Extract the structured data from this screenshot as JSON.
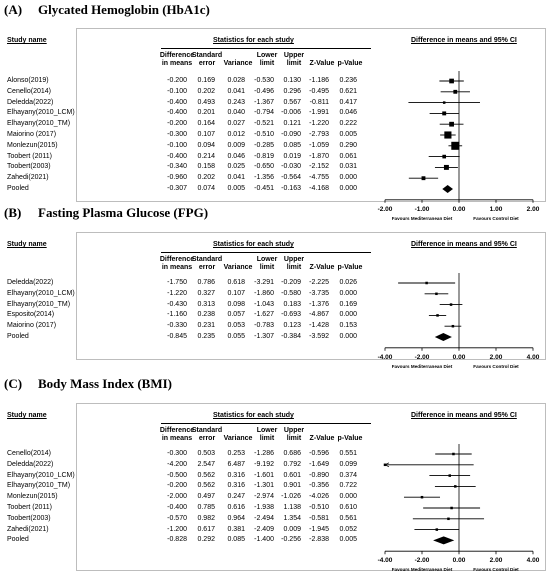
{
  "labels": {
    "study": "Study name",
    "stats": "Statistics for each study",
    "diff": "Difference in means and 95% CI",
    "col_dim": [
      "Difference",
      "in means"
    ],
    "col_se": [
      "Standard",
      "error"
    ],
    "col_var": "Variance",
    "col_ll": [
      "Lower",
      "limit"
    ],
    "col_ul": [
      "Upper",
      "limit"
    ],
    "col_z": "Z-Value",
    "col_p": "p-Value"
  },
  "panels": [
    {
      "letter": "(A)",
      "title": "Glycated Hemoglobin (HbA1c)",
      "rows": [
        [
          "Alonso(2019)",
          "-0.200",
          "0.169",
          "0.028",
          "-0.530",
          "0.130",
          "-1.186",
          "0.236"
        ],
        [
          "Cenello(2014)",
          "-0.100",
          "0.202",
          "0.041",
          "-0.496",
          "0.296",
          "-0.495",
          "0.621"
        ],
        [
          "Deledda(2022)",
          "-0.400",
          "0.493",
          "0.243",
          "-1.367",
          "0.567",
          "-0.811",
          "0.417"
        ],
        [
          "Elhayany(2010_LCM)",
          "-0.400",
          "0.201",
          "0.040",
          "-0.794",
          "-0.006",
          "-1.991",
          "0.046"
        ],
        [
          "Elhayany(2010_TM)",
          "-0.200",
          "0.164",
          "0.027",
          "-0.521",
          "0.121",
          "-1.220",
          "0.222"
        ],
        [
          "Maiorino (2017)",
          "-0.300",
          "0.107",
          "0.012",
          "-0.510",
          "-0.090",
          "-2.793",
          "0.005"
        ],
        [
          "Monlezun(2015)",
          "-0.100",
          "0.094",
          "0.009",
          "-0.285",
          "0.085",
          "-1.059",
          "0.290"
        ],
        [
          "Toobert (2011)",
          "-0.400",
          "0.214",
          "0.046",
          "-0.819",
          "0.019",
          "-1.870",
          "0.061"
        ],
        [
          "Toobert(2003)",
          "-0.340",
          "0.158",
          "0.025",
          "-0.650",
          "-0.030",
          "-2.152",
          "0.031"
        ],
        [
          "Zahedi(2021)",
          "-0.960",
          "0.202",
          "0.041",
          "-1.356",
          "-0.564",
          "-4.755",
          "0.000"
        ],
        [
          "Pooled",
          "-0.307",
          "0.074",
          "0.005",
          "-0.451",
          "-0.163",
          "-4.168",
          "0.000"
        ]
      ],
      "ticks": [
        "-2.00",
        "-1.00",
        "0.00",
        "1.00",
        "2.00"
      ],
      "favours_left": "Favours Mediterranean Diet",
      "favours_right": "Favours Control Diet"
    },
    {
      "letter": "(B)",
      "title": "Fasting Plasma Glucose (FPG)",
      "rows": [
        [
          "Deledda(2022)",
          "-1.750",
          "0.786",
          "0.618",
          "-3.291",
          "-0.209",
          "-2.225",
          "0.026"
        ],
        [
          "Elhayany(2010_LCM)",
          "-1.220",
          "0.327",
          "0.107",
          "-1.860",
          "-0.580",
          "-3.735",
          "0.000"
        ],
        [
          "Elhayany(2010_TM)",
          "-0.430",
          "0.313",
          "0.098",
          "-1.043",
          "0.183",
          "-1.376",
          "0.169"
        ],
        [
          "Esposito(2014)",
          "-1.160",
          "0.238",
          "0.057",
          "-1.627",
          "-0.693",
          "-4.867",
          "0.000"
        ],
        [
          "Maiorino (2017)",
          "-0.330",
          "0.231",
          "0.053",
          "-0.783",
          "0.123",
          "-1.428",
          "0.153"
        ],
        [
          "Pooled",
          "-0.845",
          "0.235",
          "0.055",
          "-1.307",
          "-0.384",
          "-3.592",
          "0.000"
        ]
      ],
      "ticks": [
        "-4.00",
        "-2.00",
        "0.00",
        "2.00",
        "4.00"
      ],
      "favours_left": "Favours Mediterranean Diet",
      "favours_right": "Favours Control Diet"
    },
    {
      "letter": "(C)",
      "title": "Body Mass Index (BMI)",
      "rows": [
        [
          "Cenello(2014)",
          "-0.300",
          "0.503",
          "0.253",
          "-1.286",
          "0.686",
          "-0.596",
          "0.551"
        ],
        [
          "Deledda(2022)",
          "-4.200",
          "2.547",
          "6.487",
          "-9.192",
          "0.792",
          "-1.649",
          "0.099"
        ],
        [
          "Elhayany(2010_LCM)",
          "-0.500",
          "0.562",
          "0.316",
          "-1.601",
          "0.601",
          "-0.890",
          "0.374"
        ],
        [
          "Elhayany(2010_TM)",
          "-0.200",
          "0.562",
          "0.316",
          "-1.301",
          "0.901",
          "-0.356",
          "0.722"
        ],
        [
          "Monlezun(2015)",
          "-2.000",
          "0.497",
          "0.247",
          "-2.974",
          "-1.026",
          "-4.026",
          "0.000"
        ],
        [
          "Toobert (2011)",
          "-0.400",
          "0.785",
          "0.616",
          "-1.938",
          "1.138",
          "-0.510",
          "0.610"
        ],
        [
          "Toobert(2003)",
          "-0.570",
          "0.982",
          "0.964",
          "-2.494",
          "1.354",
          "-0.581",
          "0.561"
        ],
        [
          "Zahedi(2021)",
          "-1.200",
          "0.617",
          "0.381",
          "-2.409",
          "0.009",
          "-1.945",
          "0.052"
        ],
        [
          "Pooled",
          "-0.828",
          "0.292",
          "0.085",
          "-1.400",
          "-0.256",
          "-2.838",
          "0.005"
        ]
      ],
      "ticks": [
        "-4.00",
        "-2.00",
        "0.00",
        "2.00",
        "4.00"
      ],
      "favours_left": "Favours Mediterranean Diet",
      "favours_right": "Favours Control Diet"
    }
  ],
  "chart_data": [
    {
      "type": "scatter",
      "title": "Glycated Hemoglobin (HbA1c)",
      "xlim": [
        -2,
        2
      ],
      "xticks": [
        -2,
        -1,
        0,
        1,
        2
      ],
      "points": [
        {
          "name": "Alonso(2019)",
          "est": -0.2,
          "lo": -0.53,
          "hi": 0.13,
          "var": 0.028
        },
        {
          "name": "Cenello(2014)",
          "est": -0.1,
          "lo": -0.496,
          "hi": 0.296,
          "var": 0.041
        },
        {
          "name": "Deledda(2022)",
          "est": -0.4,
          "lo": -1.367,
          "hi": 0.567,
          "var": 0.243
        },
        {
          "name": "Elhayany(2010_LCM)",
          "est": -0.4,
          "lo": -0.794,
          "hi": -0.006,
          "var": 0.04
        },
        {
          "name": "Elhayany(2010_TM)",
          "est": -0.2,
          "lo": -0.521,
          "hi": 0.121,
          "var": 0.027
        },
        {
          "name": "Maiorino (2017)",
          "est": -0.3,
          "lo": -0.51,
          "hi": -0.09,
          "var": 0.012
        },
        {
          "name": "Monlezun(2015)",
          "est": -0.1,
          "lo": -0.285,
          "hi": 0.085,
          "var": 0.009
        },
        {
          "name": "Toobert (2011)",
          "est": -0.4,
          "lo": -0.819,
          "hi": 0.019,
          "var": 0.046
        },
        {
          "name": "Toobert(2003)",
          "est": -0.34,
          "lo": -0.65,
          "hi": -0.03,
          "var": 0.025
        },
        {
          "name": "Zahedi(2021)",
          "est": -0.96,
          "lo": -1.356,
          "hi": -0.564,
          "var": 0.041
        }
      ],
      "pooled": {
        "name": "Pooled",
        "est": -0.307,
        "lo": -0.451,
        "hi": -0.163
      }
    },
    {
      "type": "scatter",
      "title": "Fasting Plasma Glucose (FPG)",
      "xlim": [
        -4,
        4
      ],
      "xticks": [
        -4,
        -2,
        0,
        2,
        4
      ],
      "points": [
        {
          "name": "Deledda(2022)",
          "est": -1.75,
          "lo": -3.291,
          "hi": -0.209,
          "var": 0.618
        },
        {
          "name": "Elhayany(2010_LCM)",
          "est": -1.22,
          "lo": -1.86,
          "hi": -0.58,
          "var": 0.107
        },
        {
          "name": "Elhayany(2010_TM)",
          "est": -0.43,
          "lo": -1.043,
          "hi": 0.183,
          "var": 0.098
        },
        {
          "name": "Esposito(2014)",
          "est": -1.16,
          "lo": -1.627,
          "hi": -0.693,
          "var": 0.057
        },
        {
          "name": "Maiorino (2017)",
          "est": -0.33,
          "lo": -0.783,
          "hi": 0.123,
          "var": 0.053
        }
      ],
      "pooled": {
        "name": "Pooled",
        "est": -0.845,
        "lo": -1.307,
        "hi": -0.384
      }
    },
    {
      "type": "scatter",
      "title": "Body Mass Index (BMI)",
      "xlim": [
        -4,
        4
      ],
      "xticks": [
        -4,
        -2,
        0,
        2,
        4
      ],
      "points": [
        {
          "name": "Cenello(2014)",
          "est": -0.3,
          "lo": -1.286,
          "hi": 0.686,
          "var": 0.253
        },
        {
          "name": "Deledda(2022)",
          "est": -4.2,
          "lo": -9.192,
          "hi": 0.792,
          "var": 6.487
        },
        {
          "name": "Elhayany(2010_LCM)",
          "est": -0.5,
          "lo": -1.601,
          "hi": 0.601,
          "var": 0.316
        },
        {
          "name": "Elhayany(2010_TM)",
          "est": -0.2,
          "lo": -1.301,
          "hi": 0.901,
          "var": 0.316
        },
        {
          "name": "Monlezun(2015)",
          "est": -2.0,
          "lo": -2.974,
          "hi": -1.026,
          "var": 0.247
        },
        {
          "name": "Toobert (2011)",
          "est": -0.4,
          "lo": -1.938,
          "hi": 1.138,
          "var": 0.616
        },
        {
          "name": "Toobert(2003)",
          "est": -0.57,
          "lo": -2.494,
          "hi": 1.354,
          "var": 0.964
        },
        {
          "name": "Zahedi(2021)",
          "est": -1.2,
          "lo": -2.409,
          "hi": 0.009,
          "var": 0.381
        }
      ],
      "pooled": {
        "name": "Pooled",
        "est": -0.828,
        "lo": -1.4,
        "hi": -0.256
      }
    }
  ]
}
